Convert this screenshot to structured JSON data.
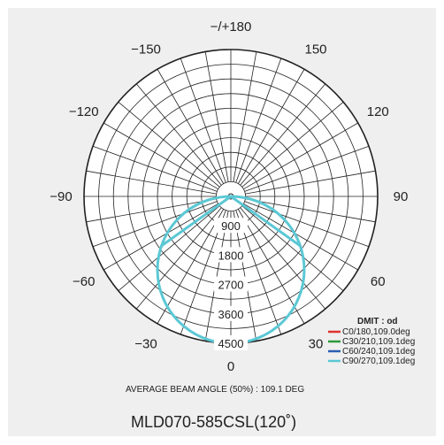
{
  "chart_data": {
    "type": "polar",
    "unit_label": "DMIT : od",
    "angle_ticks": [
      {
        "angle": 180,
        "label": "−/+180"
      },
      {
        "angle": 150,
        "label": "150"
      },
      {
        "angle": -150,
        "label": "−150"
      },
      {
        "angle": 120,
        "label": "120"
      },
      {
        "angle": -120,
        "label": "−120"
      },
      {
        "angle": 90,
        "label": "90"
      },
      {
        "angle": -90,
        "label": "−90"
      },
      {
        "angle": 60,
        "label": "60"
      },
      {
        "angle": -60,
        "label": "−60"
      },
      {
        "angle": 30,
        "label": "30"
      },
      {
        "angle": -30,
        "label": "−30"
      },
      {
        "angle": 0,
        "label": "0"
      }
    ],
    "radial_max": 4500,
    "radial_ticks": [
      {
        "value": 900,
        "label": "900"
      },
      {
        "value": 1800,
        "label": "1800"
      },
      {
        "value": 2700,
        "label": "2700"
      },
      {
        "value": 3600,
        "label": "3600"
      },
      {
        "value": 4500,
        "label": "4500"
      }
    ],
    "rings": [
      450,
      900,
      1350,
      1800,
      2250,
      2700,
      3150,
      3600,
      4050,
      4500
    ],
    "spoke_step_deg": 10,
    "series": [
      {
        "name": "C0/180,109.0deg",
        "color": "#e03030"
      },
      {
        "name": "C30/210,109.1deg",
        "color": "#2a9a3a"
      },
      {
        "name": "C60/240,109.1deg",
        "color": "#2a5fb0"
      },
      {
        "name": "C90/270,109.1deg",
        "color": "#5bc8d4"
      }
    ],
    "curve": {
      "peak_value": 4500,
      "half_beam_angle_deg": 54.55,
      "color": "#5bc8d4"
    }
  },
  "beam_angle_text": "AVERAGE BEAM ANGLE (50%) : 109.1 DEG",
  "model_text": "MLD070-585CSL(120˚)"
}
